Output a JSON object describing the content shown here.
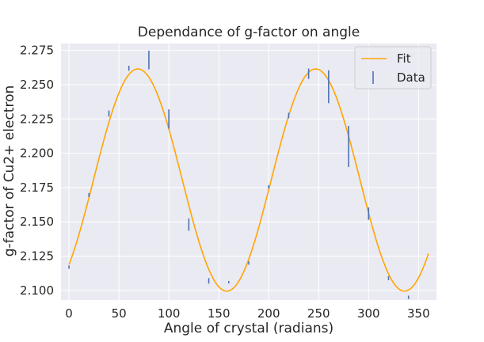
{
  "chart_data": {
    "type": "line",
    "title": "Dependance of g-factor on angle",
    "xlabel": "Angle of crystal (radians)",
    "ylabel": "g-factor of Cu2+ electron",
    "xlim": [
      -8,
      368
    ],
    "ylim": [
      2.093,
      2.28
    ],
    "xticks": [
      0,
      50,
      100,
      150,
      200,
      250,
      300,
      350
    ],
    "yticks": [
      2.1,
      2.125,
      2.15,
      2.175,
      2.2,
      2.225,
      2.25,
      2.275
    ],
    "grid": true,
    "legend_position": "top-right",
    "colors": {
      "background": "#eaeaf2",
      "grid": "#ffffff",
      "fit": "#ffa500",
      "data": "#4c72b0",
      "text": "#262626"
    },
    "series": [
      {
        "name": "Fit",
        "kind": "line",
        "x_range": [
          0,
          360
        ],
        "model": "sine",
        "offset": 2.1805,
        "amplitude": 0.081,
        "period_deg": 178,
        "phase_deg": 24.5
      },
      {
        "name": "Data",
        "kind": "errorbar",
        "points": [
          {
            "x": 0,
            "y": 2.117,
            "err": 0.0012
          },
          {
            "x": 20,
            "y": 2.1695,
            "err": 0.0015
          },
          {
            "x": 40,
            "y": 2.229,
            "err": 0.0022
          },
          {
            "x": 60,
            "y": 2.262,
            "err": 0.0018
          },
          {
            "x": 80,
            "y": 2.268,
            "err": 0.0068
          },
          {
            "x": 100,
            "y": 2.225,
            "err": 0.007
          },
          {
            "x": 120,
            "y": 2.148,
            "err": 0.0045
          },
          {
            "x": 140,
            "y": 2.107,
            "err": 0.002
          },
          {
            "x": 160,
            "y": 2.106,
            "err": 0.0008
          },
          {
            "x": 180,
            "y": 2.12,
            "err": 0.0012
          },
          {
            "x": 200,
            "y": 2.1755,
            "err": 0.0012
          },
          {
            "x": 220,
            "y": 2.2275,
            "err": 0.002
          },
          {
            "x": 240,
            "y": 2.258,
            "err": 0.0038
          },
          {
            "x": 260,
            "y": 2.2485,
            "err": 0.012
          },
          {
            "x": 280,
            "y": 2.205,
            "err": 0.015
          },
          {
            "x": 300,
            "y": 2.156,
            "err": 0.0045
          },
          {
            "x": 320,
            "y": 2.109,
            "err": 0.0015
          },
          {
            "x": 340,
            "y": 2.095,
            "err": 0.0012
          }
        ]
      }
    ]
  }
}
